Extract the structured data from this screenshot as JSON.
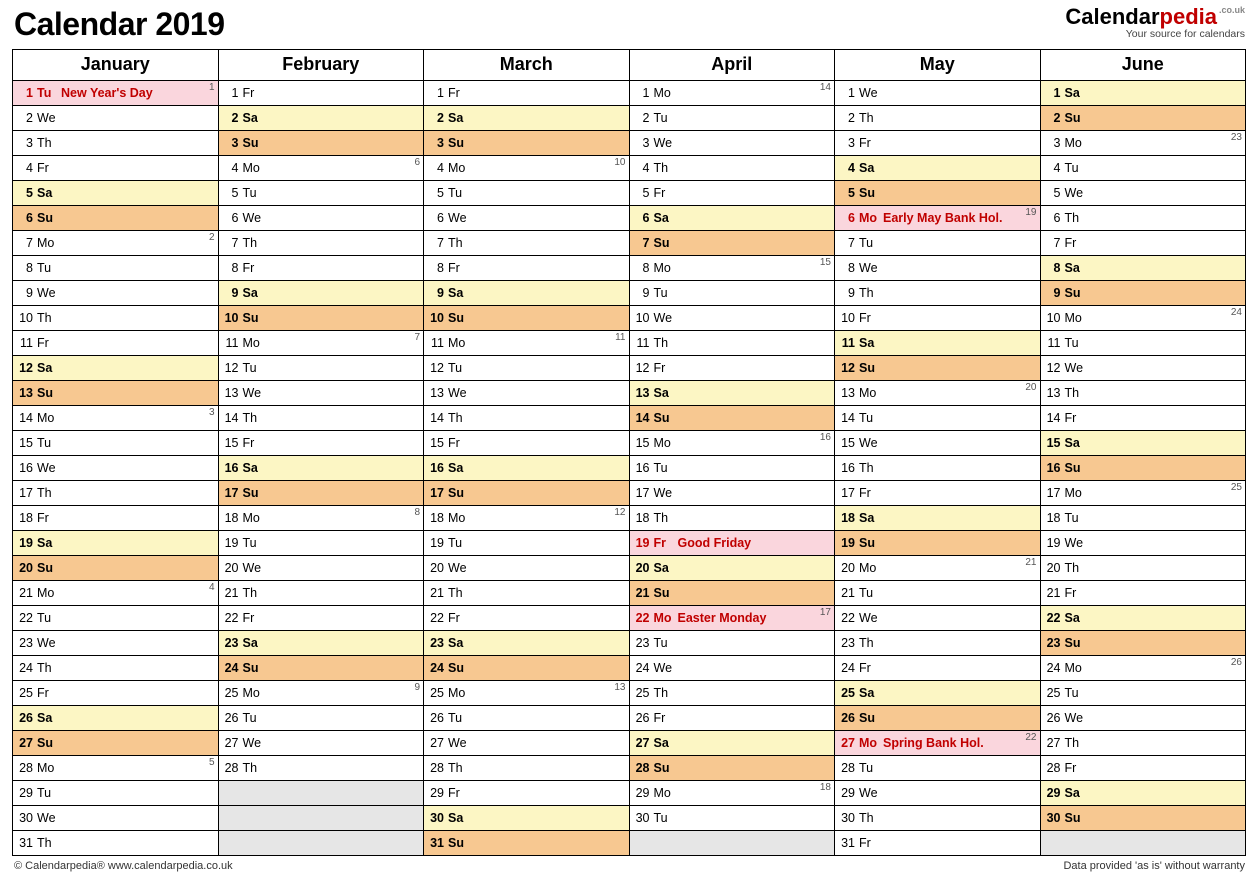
{
  "title": "Calendar 2019",
  "logo": {
    "part1": "Calendar",
    "part2": "pedia",
    "suffix": ".co.uk",
    "tagline": "Your source for calendars"
  },
  "footer": {
    "left": "© Calendarpedia®   www.calendarpedia.co.uk",
    "right": "Data provided 'as is' without warranty"
  },
  "colors": {
    "sat": "#fcf6c4",
    "sun": "#f7c891",
    "hol": "#fad6dd",
    "empty": "#e6e6e6",
    "border": "#000000",
    "holtext": "#c00000"
  },
  "months": [
    "January",
    "February",
    "March",
    "April",
    "May",
    "June"
  ],
  "grid": [
    [
      {
        "d": 1,
        "w": "Tu",
        "t": "hol",
        "e": "New Year's Day",
        "wk": 1
      },
      {
        "d": 1,
        "w": "Fr"
      },
      {
        "d": 1,
        "w": "Fr"
      },
      {
        "d": 1,
        "w": "Mo",
        "wk": 14
      },
      {
        "d": 1,
        "w": "We"
      },
      {
        "d": 1,
        "w": "Sa",
        "t": "sat"
      }
    ],
    [
      {
        "d": 2,
        "w": "We"
      },
      {
        "d": 2,
        "w": "Sa",
        "t": "sat"
      },
      {
        "d": 2,
        "w": "Sa",
        "t": "sat"
      },
      {
        "d": 2,
        "w": "Tu"
      },
      {
        "d": 2,
        "w": "Th"
      },
      {
        "d": 2,
        "w": "Su",
        "t": "sun"
      }
    ],
    [
      {
        "d": 3,
        "w": "Th"
      },
      {
        "d": 3,
        "w": "Su",
        "t": "sun"
      },
      {
        "d": 3,
        "w": "Su",
        "t": "sun"
      },
      {
        "d": 3,
        "w": "We"
      },
      {
        "d": 3,
        "w": "Fr"
      },
      {
        "d": 3,
        "w": "Mo",
        "wk": 23
      }
    ],
    [
      {
        "d": 4,
        "w": "Fr"
      },
      {
        "d": 4,
        "w": "Mo",
        "wk": 6
      },
      {
        "d": 4,
        "w": "Mo",
        "wk": 10
      },
      {
        "d": 4,
        "w": "Th"
      },
      {
        "d": 4,
        "w": "Sa",
        "t": "sat"
      },
      {
        "d": 4,
        "w": "Tu"
      }
    ],
    [
      {
        "d": 5,
        "w": "Sa",
        "t": "sat"
      },
      {
        "d": 5,
        "w": "Tu"
      },
      {
        "d": 5,
        "w": "Tu"
      },
      {
        "d": 5,
        "w": "Fr"
      },
      {
        "d": 5,
        "w": "Su",
        "t": "sun"
      },
      {
        "d": 5,
        "w": "We"
      }
    ],
    [
      {
        "d": 6,
        "w": "Su",
        "t": "sun"
      },
      {
        "d": 6,
        "w": "We"
      },
      {
        "d": 6,
        "w": "We"
      },
      {
        "d": 6,
        "w": "Sa",
        "t": "sat"
      },
      {
        "d": 6,
        "w": "Mo",
        "t": "hol",
        "e": "Early May Bank Hol.",
        "wk": 19
      },
      {
        "d": 6,
        "w": "Th"
      }
    ],
    [
      {
        "d": 7,
        "w": "Mo",
        "wk": 2
      },
      {
        "d": 7,
        "w": "Th"
      },
      {
        "d": 7,
        "w": "Th"
      },
      {
        "d": 7,
        "w": "Su",
        "t": "sun"
      },
      {
        "d": 7,
        "w": "Tu"
      },
      {
        "d": 7,
        "w": "Fr"
      }
    ],
    [
      {
        "d": 8,
        "w": "Tu"
      },
      {
        "d": 8,
        "w": "Fr"
      },
      {
        "d": 8,
        "w": "Fr"
      },
      {
        "d": 8,
        "w": "Mo",
        "wk": 15
      },
      {
        "d": 8,
        "w": "We"
      },
      {
        "d": 8,
        "w": "Sa",
        "t": "sat"
      }
    ],
    [
      {
        "d": 9,
        "w": "We"
      },
      {
        "d": 9,
        "w": "Sa",
        "t": "sat"
      },
      {
        "d": 9,
        "w": "Sa",
        "t": "sat"
      },
      {
        "d": 9,
        "w": "Tu"
      },
      {
        "d": 9,
        "w": "Th"
      },
      {
        "d": 9,
        "w": "Su",
        "t": "sun"
      }
    ],
    [
      {
        "d": 10,
        "w": "Th"
      },
      {
        "d": 10,
        "w": "Su",
        "t": "sun"
      },
      {
        "d": 10,
        "w": "Su",
        "t": "sun"
      },
      {
        "d": 10,
        "w": "We"
      },
      {
        "d": 10,
        "w": "Fr"
      },
      {
        "d": 10,
        "w": "Mo",
        "wk": 24
      }
    ],
    [
      {
        "d": 11,
        "w": "Fr"
      },
      {
        "d": 11,
        "w": "Mo",
        "wk": 7
      },
      {
        "d": 11,
        "w": "Mo",
        "wk": 11
      },
      {
        "d": 11,
        "w": "Th"
      },
      {
        "d": 11,
        "w": "Sa",
        "t": "sat"
      },
      {
        "d": 11,
        "w": "Tu"
      }
    ],
    [
      {
        "d": 12,
        "w": "Sa",
        "t": "sat"
      },
      {
        "d": 12,
        "w": "Tu"
      },
      {
        "d": 12,
        "w": "Tu"
      },
      {
        "d": 12,
        "w": "Fr"
      },
      {
        "d": 12,
        "w": "Su",
        "t": "sun"
      },
      {
        "d": 12,
        "w": "We"
      }
    ],
    [
      {
        "d": 13,
        "w": "Su",
        "t": "sun"
      },
      {
        "d": 13,
        "w": "We"
      },
      {
        "d": 13,
        "w": "We"
      },
      {
        "d": 13,
        "w": "Sa",
        "t": "sat"
      },
      {
        "d": 13,
        "w": "Mo",
        "wk": 20
      },
      {
        "d": 13,
        "w": "Th"
      }
    ],
    [
      {
        "d": 14,
        "w": "Mo",
        "wk": 3
      },
      {
        "d": 14,
        "w": "Th"
      },
      {
        "d": 14,
        "w": "Th"
      },
      {
        "d": 14,
        "w": "Su",
        "t": "sun"
      },
      {
        "d": 14,
        "w": "Tu"
      },
      {
        "d": 14,
        "w": "Fr"
      }
    ],
    [
      {
        "d": 15,
        "w": "Tu"
      },
      {
        "d": 15,
        "w": "Fr"
      },
      {
        "d": 15,
        "w": "Fr"
      },
      {
        "d": 15,
        "w": "Mo",
        "wk": 16
      },
      {
        "d": 15,
        "w": "We"
      },
      {
        "d": 15,
        "w": "Sa",
        "t": "sat"
      }
    ],
    [
      {
        "d": 16,
        "w": "We"
      },
      {
        "d": 16,
        "w": "Sa",
        "t": "sat"
      },
      {
        "d": 16,
        "w": "Sa",
        "t": "sat"
      },
      {
        "d": 16,
        "w": "Tu"
      },
      {
        "d": 16,
        "w": "Th"
      },
      {
        "d": 16,
        "w": "Su",
        "t": "sun"
      }
    ],
    [
      {
        "d": 17,
        "w": "Th"
      },
      {
        "d": 17,
        "w": "Su",
        "t": "sun"
      },
      {
        "d": 17,
        "w": "Su",
        "t": "sun"
      },
      {
        "d": 17,
        "w": "We"
      },
      {
        "d": 17,
        "w": "Fr"
      },
      {
        "d": 17,
        "w": "Mo",
        "wk": 25
      }
    ],
    [
      {
        "d": 18,
        "w": "Fr"
      },
      {
        "d": 18,
        "w": "Mo",
        "wk": 8
      },
      {
        "d": 18,
        "w": "Mo",
        "wk": 12
      },
      {
        "d": 18,
        "w": "Th"
      },
      {
        "d": 18,
        "w": "Sa",
        "t": "sat"
      },
      {
        "d": 18,
        "w": "Tu"
      }
    ],
    [
      {
        "d": 19,
        "w": "Sa",
        "t": "sat"
      },
      {
        "d": 19,
        "w": "Tu"
      },
      {
        "d": 19,
        "w": "Tu"
      },
      {
        "d": 19,
        "w": "Fr",
        "t": "hol",
        "e": "Good Friday"
      },
      {
        "d": 19,
        "w": "Su",
        "t": "sun"
      },
      {
        "d": 19,
        "w": "We"
      }
    ],
    [
      {
        "d": 20,
        "w": "Su",
        "t": "sun"
      },
      {
        "d": 20,
        "w": "We"
      },
      {
        "d": 20,
        "w": "We"
      },
      {
        "d": 20,
        "w": "Sa",
        "t": "sat"
      },
      {
        "d": 20,
        "w": "Mo",
        "wk": 21
      },
      {
        "d": 20,
        "w": "Th"
      }
    ],
    [
      {
        "d": 21,
        "w": "Mo",
        "wk": 4
      },
      {
        "d": 21,
        "w": "Th"
      },
      {
        "d": 21,
        "w": "Th"
      },
      {
        "d": 21,
        "w": "Su",
        "t": "sun"
      },
      {
        "d": 21,
        "w": "Tu"
      },
      {
        "d": 21,
        "w": "Fr"
      }
    ],
    [
      {
        "d": 22,
        "w": "Tu"
      },
      {
        "d": 22,
        "w": "Fr"
      },
      {
        "d": 22,
        "w": "Fr"
      },
      {
        "d": 22,
        "w": "Mo",
        "t": "hol",
        "e": "Easter Monday",
        "wk": 17
      },
      {
        "d": 22,
        "w": "We"
      },
      {
        "d": 22,
        "w": "Sa",
        "t": "sat"
      }
    ],
    [
      {
        "d": 23,
        "w": "We"
      },
      {
        "d": 23,
        "w": "Sa",
        "t": "sat"
      },
      {
        "d": 23,
        "w": "Sa",
        "t": "sat"
      },
      {
        "d": 23,
        "w": "Tu"
      },
      {
        "d": 23,
        "w": "Th"
      },
      {
        "d": 23,
        "w": "Su",
        "t": "sun"
      }
    ],
    [
      {
        "d": 24,
        "w": "Th"
      },
      {
        "d": 24,
        "w": "Su",
        "t": "sun"
      },
      {
        "d": 24,
        "w": "Su",
        "t": "sun"
      },
      {
        "d": 24,
        "w": "We"
      },
      {
        "d": 24,
        "w": "Fr"
      },
      {
        "d": 24,
        "w": "Mo",
        "wk": 26
      }
    ],
    [
      {
        "d": 25,
        "w": "Fr"
      },
      {
        "d": 25,
        "w": "Mo",
        "wk": 9
      },
      {
        "d": 25,
        "w": "Mo",
        "wk": 13
      },
      {
        "d": 25,
        "w": "Th"
      },
      {
        "d": 25,
        "w": "Sa",
        "t": "sat"
      },
      {
        "d": 25,
        "w": "Tu"
      }
    ],
    [
      {
        "d": 26,
        "w": "Sa",
        "t": "sat"
      },
      {
        "d": 26,
        "w": "Tu"
      },
      {
        "d": 26,
        "w": "Tu"
      },
      {
        "d": 26,
        "w": "Fr"
      },
      {
        "d": 26,
        "w": "Su",
        "t": "sun"
      },
      {
        "d": 26,
        "w": "We"
      }
    ],
    [
      {
        "d": 27,
        "w": "Su",
        "t": "sun"
      },
      {
        "d": 27,
        "w": "We"
      },
      {
        "d": 27,
        "w": "We"
      },
      {
        "d": 27,
        "w": "Sa",
        "t": "sat"
      },
      {
        "d": 27,
        "w": "Mo",
        "t": "hol",
        "e": "Spring Bank Hol.",
        "wk": 22
      },
      {
        "d": 27,
        "w": "Th"
      }
    ],
    [
      {
        "d": 28,
        "w": "Mo",
        "wk": 5
      },
      {
        "d": 28,
        "w": "Th"
      },
      {
        "d": 28,
        "w": "Th"
      },
      {
        "d": 28,
        "w": "Su",
        "t": "sun"
      },
      {
        "d": 28,
        "w": "Tu"
      },
      {
        "d": 28,
        "w": "Fr"
      }
    ],
    [
      {
        "d": 29,
        "w": "Tu"
      },
      {
        "t": "empty"
      },
      {
        "d": 29,
        "w": "Fr"
      },
      {
        "d": 29,
        "w": "Mo",
        "wk": 18
      },
      {
        "d": 29,
        "w": "We"
      },
      {
        "d": 29,
        "w": "Sa",
        "t": "sat"
      }
    ],
    [
      {
        "d": 30,
        "w": "We"
      },
      {
        "t": "empty"
      },
      {
        "d": 30,
        "w": "Sa",
        "t": "sat"
      },
      {
        "d": 30,
        "w": "Tu"
      },
      {
        "d": 30,
        "w": "Th"
      },
      {
        "d": 30,
        "w": "Su",
        "t": "sun"
      }
    ],
    [
      {
        "d": 31,
        "w": "Th"
      },
      {
        "t": "empty"
      },
      {
        "d": 31,
        "w": "Su",
        "t": "sun"
      },
      {
        "t": "empty"
      },
      {
        "d": 31,
        "w": "Fr"
      },
      {
        "t": "empty"
      }
    ]
  ]
}
